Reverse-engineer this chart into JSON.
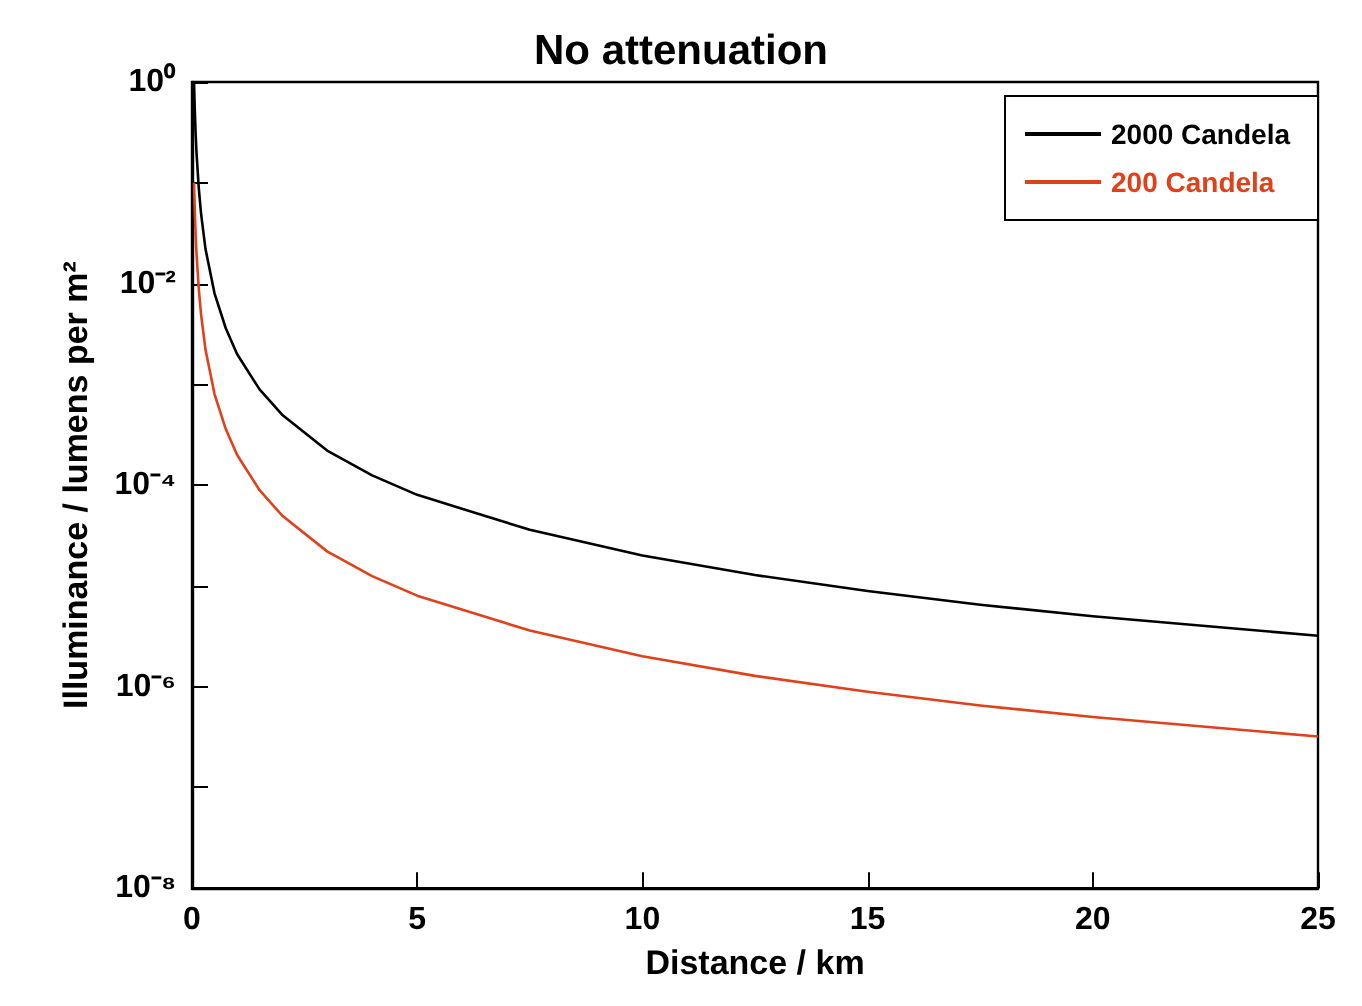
{
  "chart_data": {
    "type": "line",
    "title": "No attenuation",
    "xlabel": "Distance / km",
    "ylabel": "Illuminance / lumens per m²",
    "x": [
      0.045,
      0.06,
      0.08,
      0.1,
      0.15,
      0.2,
      0.3,
      0.5,
      0.75,
      1,
      1.5,
      2,
      3,
      4,
      5,
      7.5,
      10,
      12.5,
      15,
      17.5,
      20,
      22.5,
      25
    ],
    "series": [
      {
        "name": "2000 Candela",
        "color": "#000000",
        "values": [
          1,
          0.56,
          0.31,
          0.2,
          0.089,
          0.05,
          0.022,
          0.008,
          0.0036,
          0.002,
          0.00089,
          0.0005,
          0.00022,
          0.000125,
          8e-05,
          3.6e-05,
          2e-05,
          1.28e-05,
          8.9e-06,
          6.5e-06,
          5e-06,
          4e-06,
          3.2e-06
        ]
      },
      {
        "name": "200 Candela",
        "color": "#e0401a",
        "values": [
          0.1,
          0.056,
          0.031,
          0.02,
          0.0089,
          0.005,
          0.0022,
          0.0008,
          0.00036,
          0.0002,
          8.9e-05,
          5e-05,
          2.2e-05,
          1.25e-05,
          8e-06,
          3.6e-06,
          2e-06,
          1.28e-06,
          8.9e-07,
          6.5e-07,
          5e-07,
          4e-07,
          3.2e-07
        ]
      }
    ],
    "xlim": [
      0,
      25
    ],
    "xticks": [
      0,
      5,
      10,
      15,
      20,
      25
    ],
    "ylim": [
      1e-08,
      1
    ],
    "yticks": [
      {
        "value": 1e-08,
        "label": "10⁻⁸"
      },
      {
        "value": 1e-07,
        "label": null
      },
      {
        "value": 1e-06,
        "label": "10⁻⁶"
      },
      {
        "value": 1e-05,
        "label": null
      },
      {
        "value": 0.0001,
        "label": "10⁻⁴"
      },
      {
        "value": 0.001,
        "label": null
      },
      {
        "value": 0.01,
        "label": "10⁻²"
      },
      {
        "value": 0.1,
        "label": null
      },
      {
        "value": 1,
        "label": "10⁰"
      }
    ],
    "log": "y",
    "grid": false,
    "legend": "top right",
    "marker": "none",
    "line_style": "solid"
  }
}
